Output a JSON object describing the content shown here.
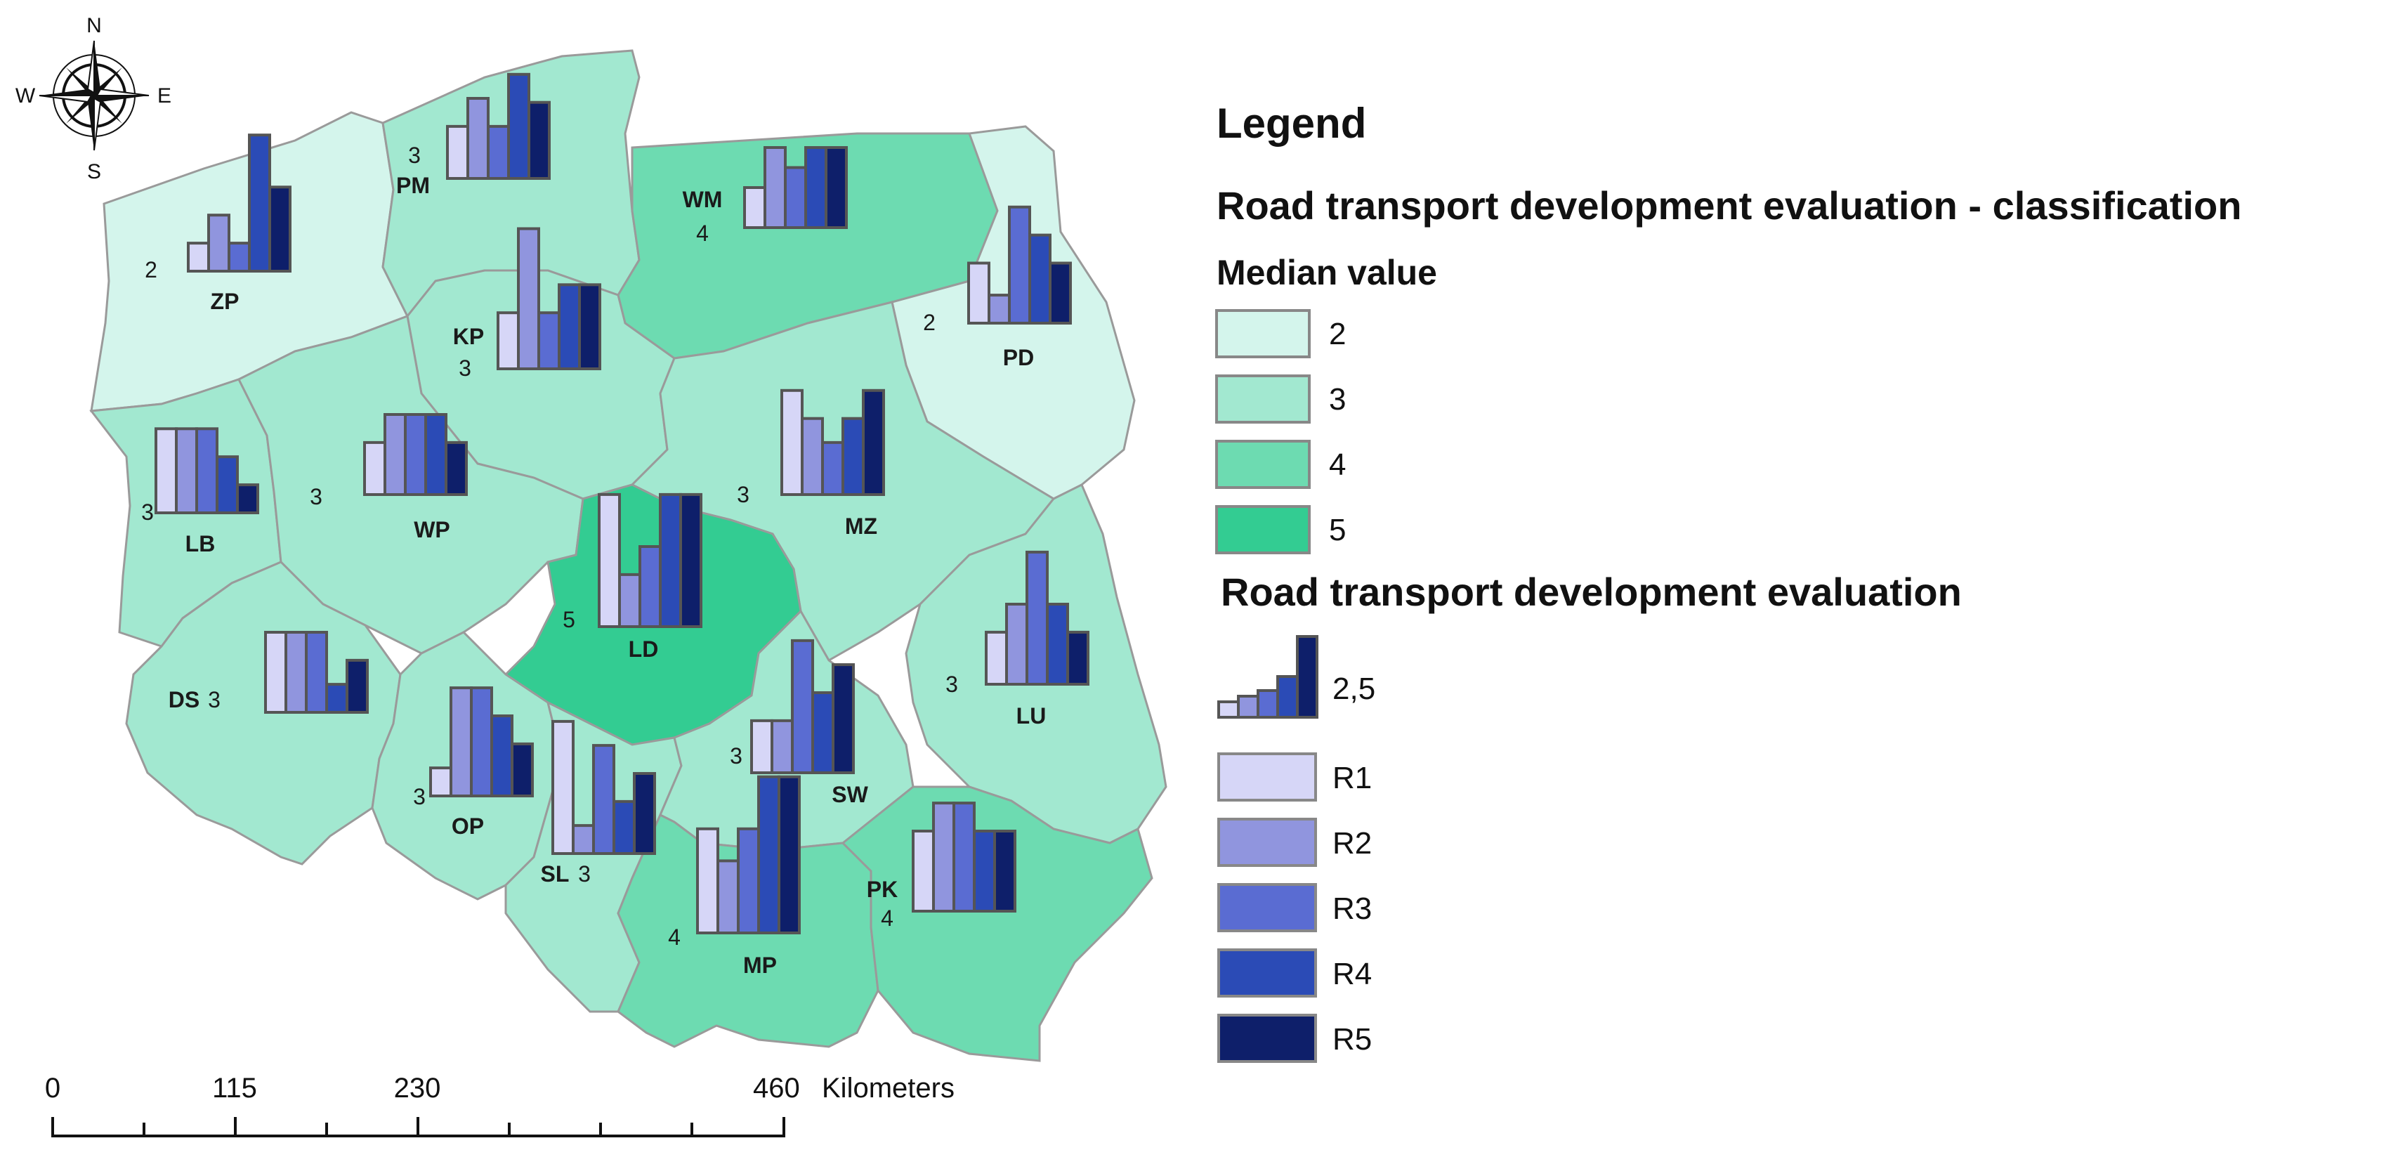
{
  "compass": {
    "north": "N",
    "south": "S",
    "east": "E",
    "west": "W",
    "icon": "compass-rose-icon"
  },
  "regions": [
    {
      "id": "ZP",
      "code": "ZP",
      "median": "2",
      "values": [
        0.7,
        1.4,
        0.7,
        3.4,
        2.1
      ]
    },
    {
      "id": "PM",
      "code": "PM",
      "median": "3",
      "values": [
        1.3,
        2.0,
        1.3,
        2.6,
        1.9
      ]
    },
    {
      "id": "WM",
      "code": "WM",
      "median": "4",
      "values": [
        1.0,
        2.0,
        1.5,
        2.0,
        2.0
      ]
    },
    {
      "id": "PD",
      "code": "PD",
      "median": "2",
      "values": [
        1.5,
        0.7,
        2.9,
        2.2,
        1.5
      ]
    },
    {
      "id": "KP",
      "code": "KP",
      "median": "3",
      "values": [
        1.4,
        3.5,
        1.4,
        2.1,
        2.1
      ]
    },
    {
      "id": "LB",
      "code": "LB",
      "median": "3",
      "values": [
        2.1,
        2.1,
        2.1,
        1.4,
        0.7
      ]
    },
    {
      "id": "WP",
      "code": "WP",
      "median": "3",
      "values": [
        1.3,
        2.0,
        2.0,
        2.0,
        1.3
      ]
    },
    {
      "id": "MZ",
      "code": "MZ",
      "median": "3",
      "values": [
        2.6,
        1.9,
        1.3,
        1.9,
        2.6
      ]
    },
    {
      "id": "LD",
      "code": "LD",
      "median": "5",
      "values": [
        3.3,
        1.3,
        2.0,
        3.3,
        3.3
      ]
    },
    {
      "id": "LU",
      "code": "LU",
      "median": "3",
      "values": [
        1.3,
        2.0,
        3.3,
        2.0,
        1.3
      ]
    },
    {
      "id": "DS",
      "code": "DS",
      "median": "3",
      "values": [
        2.0,
        2.0,
        2.0,
        0.7,
        1.3
      ]
    },
    {
      "id": "OP",
      "code": "OP",
      "median": "3",
      "values": [
        0.7,
        2.7,
        2.7,
        2.0,
        1.3
      ]
    },
    {
      "id": "SL",
      "code": "SL",
      "median": "3",
      "values": [
        3.3,
        0.7,
        2.7,
        1.3,
        2.0
      ]
    },
    {
      "id": "SW",
      "code": "SW",
      "median": "3",
      "values": [
        1.3,
        1.3,
        3.3,
        2.0,
        2.7
      ]
    },
    {
      "id": "MP",
      "code": "MP",
      "median": "4",
      "values": [
        2.6,
        1.8,
        2.6,
        3.9,
        3.9
      ]
    },
    {
      "id": "PK",
      "code": "PK",
      "median": "4",
      "values": [
        2.0,
        2.7,
        2.7,
        2.0,
        2.0
      ]
    }
  ],
  "legend": {
    "title": "Legend",
    "classification_title": "Road transport development evaluation - classification",
    "median_title": "Median value",
    "classes": [
      {
        "label": "2",
        "color": "#d4f5ec"
      },
      {
        "label": "3",
        "color": "#a2e8d0"
      },
      {
        "label": "4",
        "color": "#6ddbb1"
      },
      {
        "label": "5",
        "color": "#33cc92"
      }
    ],
    "evaluation_title": "Road transport development evaluation",
    "sample_value": "2,5",
    "series": [
      {
        "label": "R1",
        "color": "#d6d6f7"
      },
      {
        "label": "R2",
        "color": "#9095de"
      },
      {
        "label": "R3",
        "color": "#5a6cd2"
      },
      {
        "label": "R4",
        "color": "#2b4bb6"
      },
      {
        "label": "R5",
        "color": "#0e1f6a"
      }
    ]
  },
  "scale_bar": {
    "ticks": [
      "0",
      "115",
      "230",
      "460"
    ],
    "unit": "Kilometers"
  }
}
